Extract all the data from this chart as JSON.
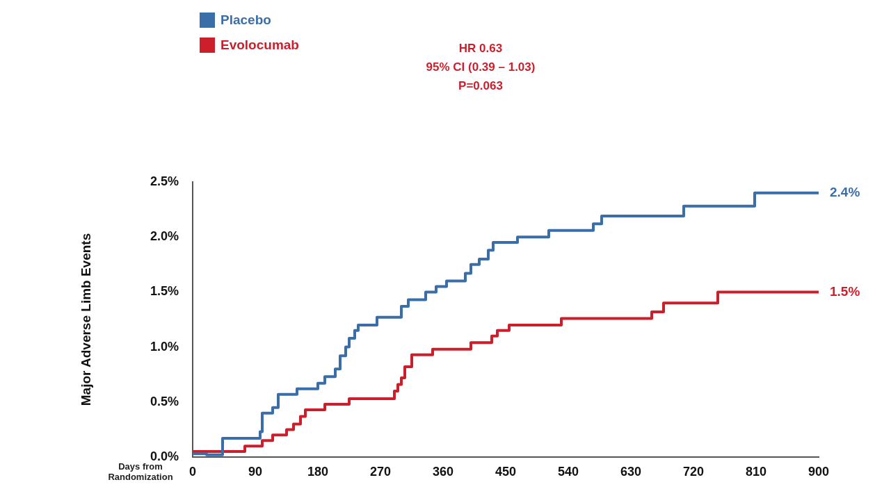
{
  "chart_data": {
    "type": "step",
    "xlabel": "Days from\nRandomization",
    "ylabel": "Major Adverse Limb Events",
    "series": [
      {
        "name": "Placebo",
        "color": "#3a6ea8",
        "x": [
          0,
          20,
          43,
          97,
          100,
          115,
          123,
          150,
          180,
          190,
          205,
          212,
          220,
          225,
          233,
          238,
          265,
          300,
          310,
          335,
          350,
          365,
          392,
          400,
          412,
          425,
          432,
          467,
          512,
          576,
          588,
          706,
          808,
          900
        ],
        "values": [
          0.03,
          0.02,
          0.17,
          0.23,
          0.4,
          0.45,
          0.57,
          0.62,
          0.67,
          0.73,
          0.8,
          0.92,
          1.0,
          1.08,
          1.15,
          1.2,
          1.27,
          1.37,
          1.43,
          1.5,
          1.55,
          1.6,
          1.67,
          1.75,
          1.8,
          1.88,
          1.95,
          2.0,
          2.06,
          2.12,
          2.19,
          2.28,
          2.4,
          2.4
        ]
      },
      {
        "name": "Evolocumab",
        "color": "#cc1f2b",
        "x": [
          0,
          75,
          100,
          115,
          135,
          145,
          155,
          162,
          190,
          225,
          290,
          295,
          300,
          305,
          315,
          345,
          400,
          430,
          438,
          455,
          530,
          660,
          677,
          755,
          900
        ],
        "values": [
          0.05,
          0.1,
          0.15,
          0.2,
          0.25,
          0.3,
          0.37,
          0.43,
          0.48,
          0.53,
          0.6,
          0.66,
          0.72,
          0.82,
          0.93,
          0.98,
          1.04,
          1.1,
          1.15,
          1.2,
          1.26,
          1.32,
          1.4,
          1.5,
          1.5
        ]
      }
    ],
    "xlim": [
      0,
      900
    ],
    "xticks": [
      0,
      90,
      180,
      270,
      360,
      450,
      540,
      630,
      720,
      810,
      900
    ],
    "ylim": [
      0,
      2.5
    ],
    "yticks": [
      {
        "value": 0,
        "label": "0.0%"
      },
      {
        "value": 0.5,
        "label": "0.5%"
      },
      {
        "value": 1,
        "label": "1.0%"
      },
      {
        "value": 1.5,
        "label": "1.5%"
      },
      {
        "value": 2,
        "label": "2.0%"
      },
      {
        "value": 2.5,
        "label": "2.5%"
      }
    ],
    "grid": false,
    "legend": "top left",
    "annotations": [
      "HR 0.63",
      "95% CI (0.39 – 1.03)",
      "P=0.063",
      {
        "text": "2.4%",
        "x": 900,
        "y": 2.4
      },
      {
        "text": "1.5%",
        "x": 900,
        "y": 1.5
      }
    ]
  }
}
